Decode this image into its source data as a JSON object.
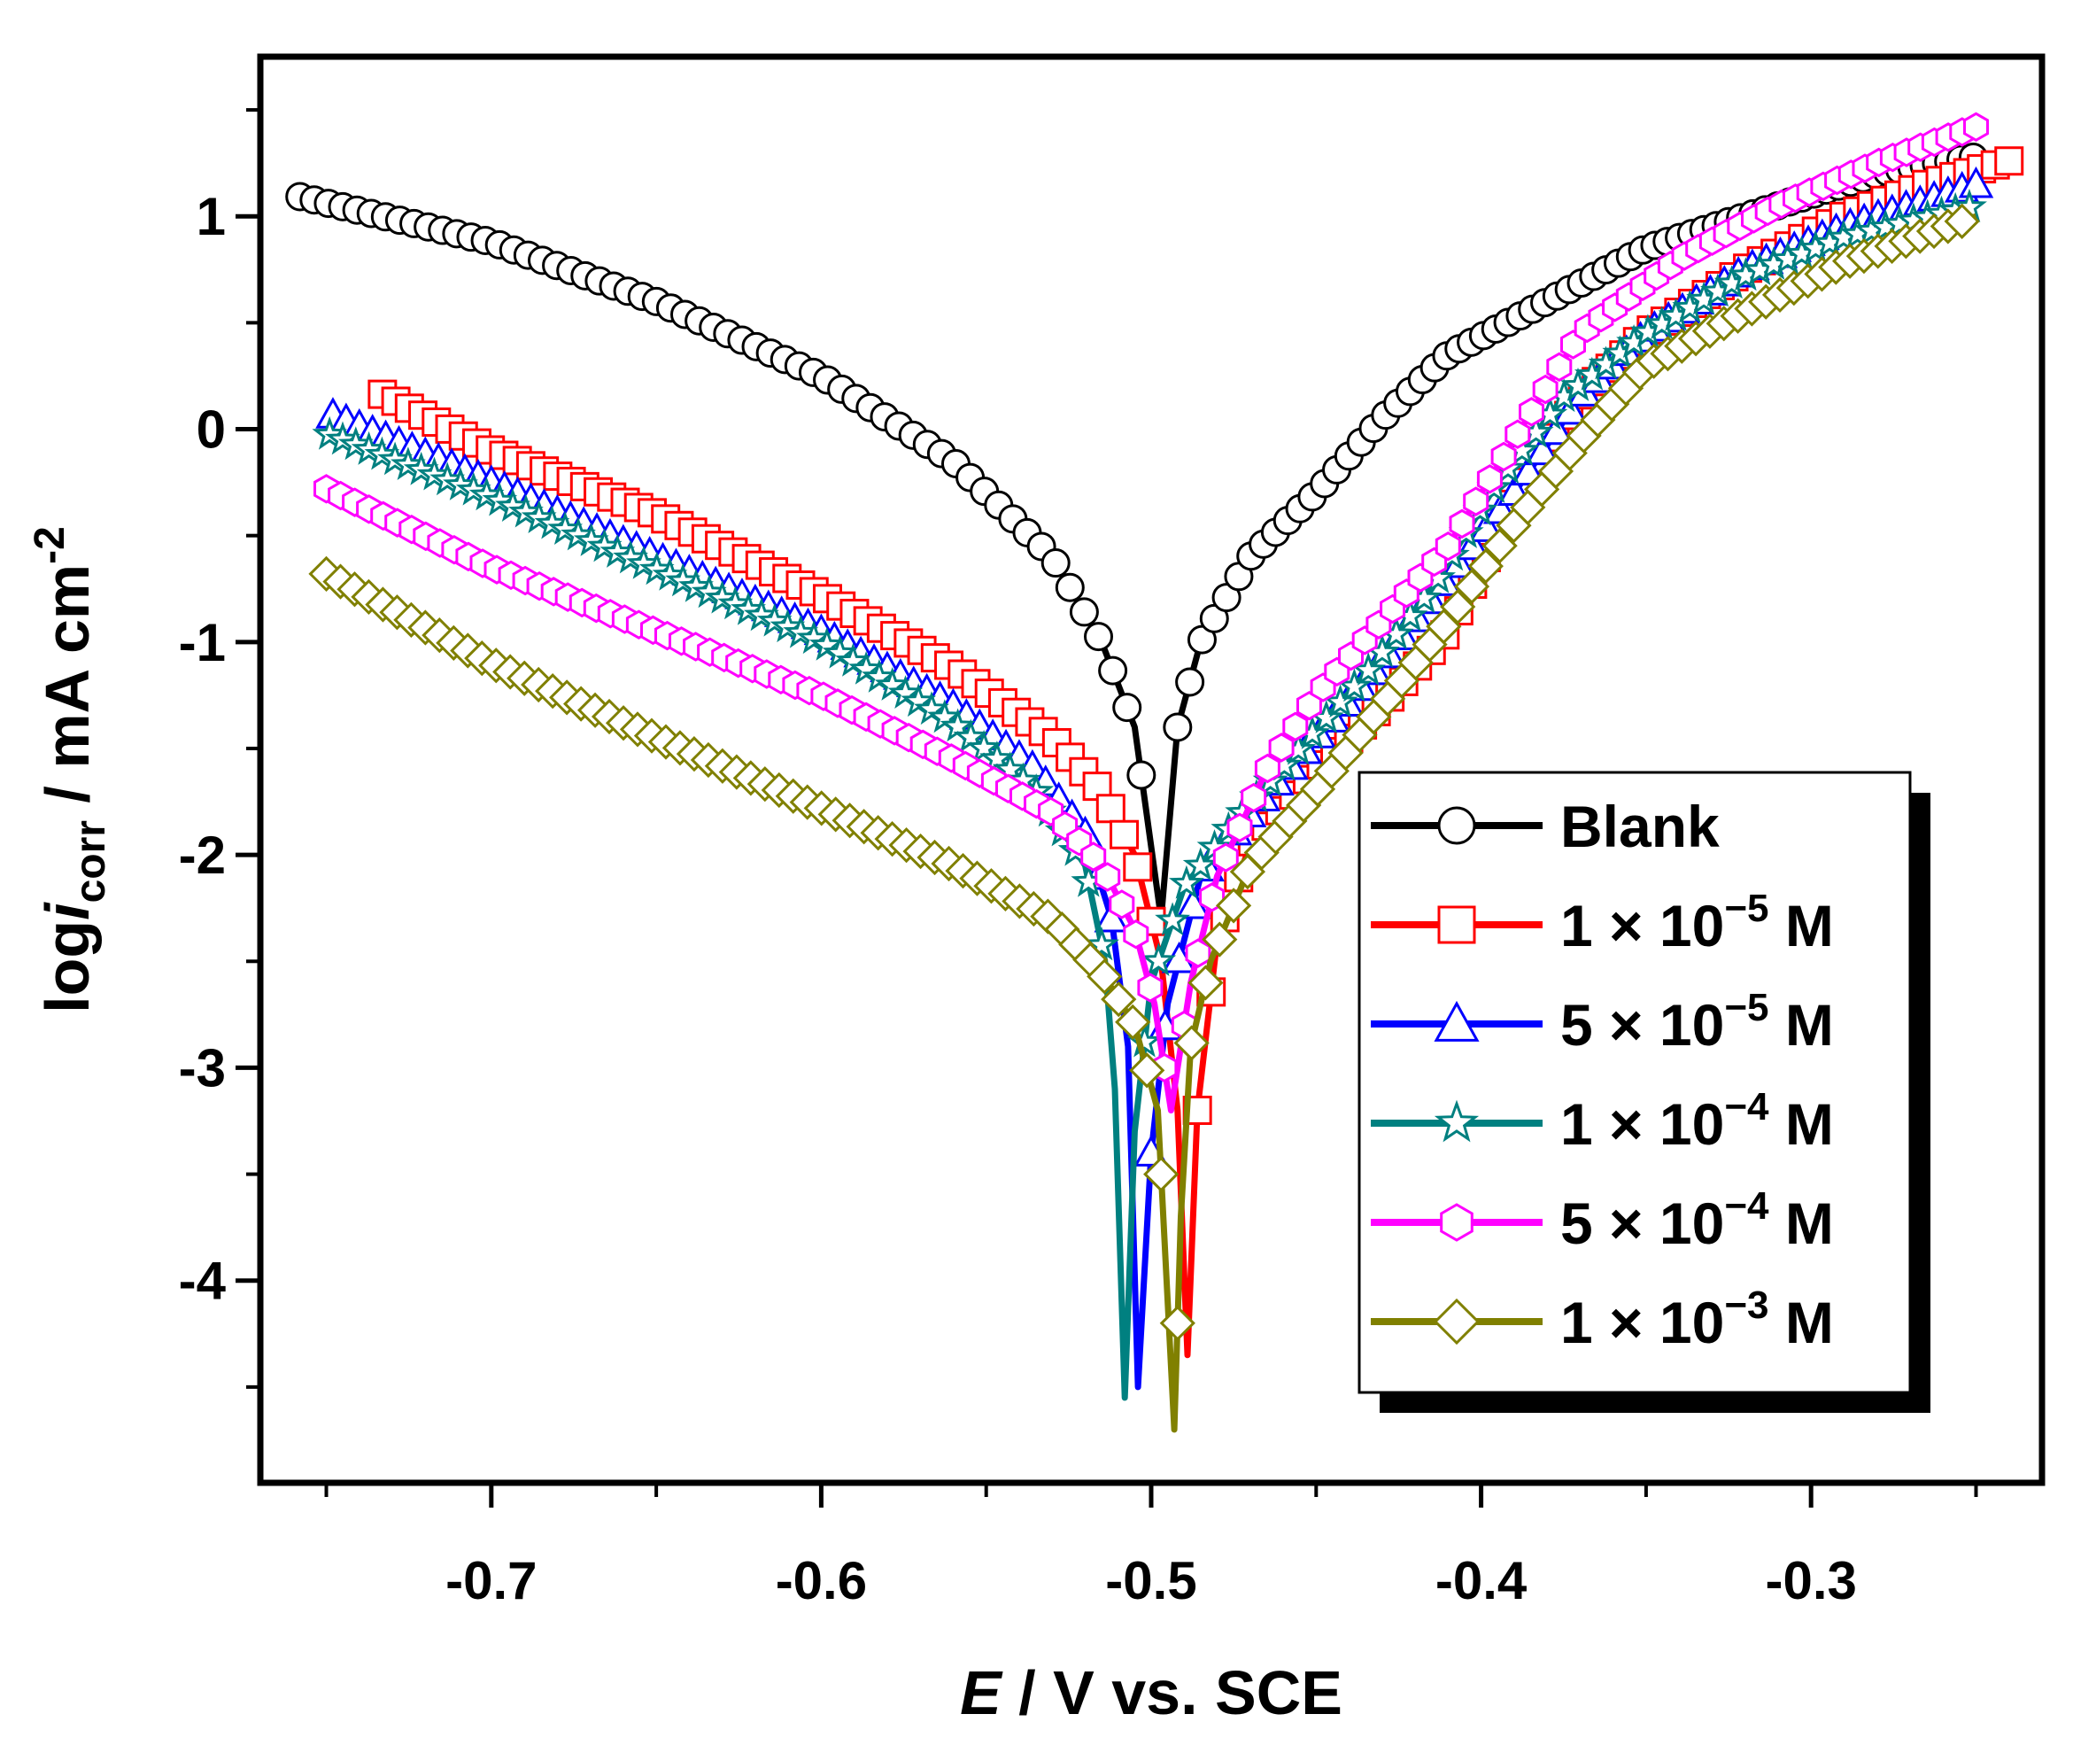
{
  "chart_data": {
    "type": "scatter",
    "title": "",
    "xlabel": {
      "italic": "E",
      "rest": " / V vs. SCE"
    },
    "ylabel": {
      "prefix": "log",
      "italic": "i",
      "subscript": "corr",
      "mid": " / mA cm",
      "superscript": "-2"
    },
    "xlim": [
      -0.77,
      -0.23
    ],
    "ylim": [
      -4.95,
      1.75
    ],
    "x_ticks": [
      -0.7,
      -0.6,
      -0.5,
      -0.4,
      -0.3
    ],
    "x_tick_labels": [
      "-0.7",
      "-0.6",
      "-0.5",
      "-0.4",
      "-0.3"
    ],
    "y_ticks": [
      -4,
      -3,
      -2,
      -1,
      0,
      1
    ],
    "y_tick_labels": [
      "-4",
      "-3",
      "-2",
      "-1",
      "0",
      "1"
    ],
    "grid": false,
    "legend_position": "lower-right",
    "series": [
      {
        "name": "Blank",
        "legend_main": "Blank",
        "legend_exp": "",
        "legend_unit": "",
        "color": "#000000",
        "marker": "circle",
        "ecorr": -0.497,
        "icorr_min": -2.3,
        "anodic": [
          [
            -0.497,
            -2.3
          ],
          [
            -0.492,
            -1.4
          ],
          [
            -0.485,
            -1.0
          ],
          [
            -0.47,
            -0.6
          ],
          [
            -0.45,
            -0.3
          ],
          [
            -0.43,
            0.05
          ],
          [
            -0.41,
            0.35
          ],
          [
            -0.38,
            0.6
          ],
          [
            -0.35,
            0.85
          ],
          [
            -0.32,
            1.0
          ],
          [
            -0.3,
            1.1
          ],
          [
            -0.28,
            1.2
          ],
          [
            -0.25,
            1.28
          ]
        ],
        "cathodic": [
          [
            -0.76,
            1.1
          ],
          [
            -0.7,
            0.88
          ],
          [
            -0.65,
            0.6
          ],
          [
            -0.6,
            0.25
          ],
          [
            -0.56,
            -0.15
          ],
          [
            -0.53,
            -0.6
          ],
          [
            -0.515,
            -1.0
          ],
          [
            -0.505,
            -1.4
          ],
          [
            -0.497,
            -2.3
          ]
        ],
        "marker_anodic": [
          -0.492,
          -0.236,
          70
        ],
        "marker_cathodic": [
          -0.758,
          -0.503,
          60
        ]
      },
      {
        "name": "1 × 10^-5 M",
        "legend_main": "1 × 10",
        "legend_exp": "−5",
        "legend_unit": " M",
        "color": "#ff0000",
        "marker": "square",
        "ecorr": -0.489,
        "icorr_min": -4.35,
        "anodic": [
          [
            -0.489,
            -4.35
          ],
          [
            -0.486,
            -3.2
          ],
          [
            -0.48,
            -2.4
          ],
          [
            -0.47,
            -1.95
          ],
          [
            -0.45,
            -1.6
          ],
          [
            -0.43,
            -1.3
          ],
          [
            -0.41,
            -0.95
          ],
          [
            -0.39,
            -0.35
          ],
          [
            -0.37,
            0.15
          ],
          [
            -0.35,
            0.45
          ],
          [
            -0.32,
            0.75
          ],
          [
            -0.29,
            1.0
          ],
          [
            -0.265,
            1.15
          ],
          [
            -0.24,
            1.26
          ]
        ],
        "cathodic": [
          [
            -0.735,
            0.18
          ],
          [
            -0.7,
            -0.1
          ],
          [
            -0.65,
            -0.4
          ],
          [
            -0.6,
            -0.78
          ],
          [
            -0.56,
            -1.12
          ],
          [
            -0.53,
            -1.45
          ],
          [
            -0.515,
            -1.7
          ],
          [
            -0.505,
            -2.0
          ],
          [
            -0.497,
            -2.5
          ],
          [
            -0.492,
            -3.2
          ],
          [
            -0.489,
            -4.35
          ]
        ],
        "marker_anodic": [
          -0.486,
          -0.24,
          60
        ],
        "marker_cathodic": [
          -0.733,
          -0.5,
          58
        ]
      },
      {
        "name": "5 × 10^-5 M",
        "legend_main": "5 × 10",
        "legend_exp": "−5",
        "legend_unit": " M",
        "color": "#0000ff",
        "marker": "triangle",
        "ecorr": -0.504,
        "icorr_min": -4.5,
        "anodic": [
          [
            -0.504,
            -4.5
          ],
          [
            -0.5,
            -3.4
          ],
          [
            -0.495,
            -2.7
          ],
          [
            -0.485,
            -2.1
          ],
          [
            -0.47,
            -1.8
          ],
          [
            -0.45,
            -1.45
          ],
          [
            -0.43,
            -1.1
          ],
          [
            -0.41,
            -0.7
          ],
          [
            -0.39,
            -0.3
          ],
          [
            -0.37,
            0.15
          ],
          [
            -0.35,
            0.45
          ],
          [
            -0.32,
            0.75
          ],
          [
            -0.29,
            0.95
          ],
          [
            -0.25,
            1.15
          ]
        ],
        "cathodic": [
          [
            -0.75,
            0.08
          ],
          [
            -0.7,
            -0.25
          ],
          [
            -0.65,
            -0.6
          ],
          [
            -0.6,
            -0.95
          ],
          [
            -0.56,
            -1.3
          ],
          [
            -0.535,
            -1.6
          ],
          [
            -0.52,
            -1.9
          ],
          [
            -0.512,
            -2.3
          ],
          [
            -0.507,
            -2.9
          ],
          [
            -0.504,
            -4.5
          ]
        ],
        "marker_anodic": [
          -0.5,
          -0.25,
          60
        ],
        "marker_cathodic": [
          -0.748,
          -0.512,
          60
        ]
      },
      {
        "name": "1 × 10^-4 M",
        "legend_main": "1 × 10",
        "legend_exp": "−4",
        "legend_unit": " M",
        "color": "#008080",
        "marker": "star",
        "ecorr": -0.508,
        "icorr_min": -4.55,
        "anodic": [
          [
            -0.508,
            -4.55
          ],
          [
            -0.505,
            -3.3
          ],
          [
            -0.5,
            -2.6
          ],
          [
            -0.49,
            -2.15
          ],
          [
            -0.475,
            -1.85
          ],
          [
            -0.455,
            -1.5
          ],
          [
            -0.435,
            -1.15
          ],
          [
            -0.415,
            -0.75
          ],
          [
            -0.395,
            -0.25
          ],
          [
            -0.375,
            0.15
          ],
          [
            -0.35,
            0.45
          ],
          [
            -0.32,
            0.72
          ],
          [
            -0.29,
            0.9
          ],
          [
            -0.25,
            1.05
          ]
        ],
        "cathodic": [
          [
            -0.75,
            -0.02
          ],
          [
            -0.7,
            -0.32
          ],
          [
            -0.65,
            -0.66
          ],
          [
            -0.6,
            -1.0
          ],
          [
            -0.56,
            -1.38
          ],
          [
            -0.535,
            -1.7
          ],
          [
            -0.52,
            -2.05
          ],
          [
            -0.514,
            -2.5
          ],
          [
            -0.511,
            -3.1
          ],
          [
            -0.508,
            -4.55
          ]
        ],
        "marker_anodic": [
          -0.502,
          -0.252,
          60
        ],
        "marker_cathodic": [
          -0.749,
          -0.515,
          60
        ]
      },
      {
        "name": "5 × 10^-4 M",
        "legend_main": "5 × 10",
        "legend_exp": "−4",
        "legend_unit": " M",
        "color": "#ff00ff",
        "marker": "hexagon",
        "ecorr": -0.494,
        "icorr_min": -3.2,
        "anodic": [
          [
            -0.494,
            -3.2
          ],
          [
            -0.488,
            -2.6
          ],
          [
            -0.48,
            -2.1
          ],
          [
            -0.465,
            -1.6
          ],
          [
            -0.45,
            -1.25
          ],
          [
            -0.43,
            -0.9
          ],
          [
            -0.41,
            -0.55
          ],
          [
            -0.39,
            -0.05
          ],
          [
            -0.37,
            0.45
          ],
          [
            -0.34,
            0.8
          ],
          [
            -0.31,
            1.05
          ],
          [
            -0.28,
            1.25
          ],
          [
            -0.25,
            1.42
          ]
        ],
        "cathodic": [
          [
            -0.75,
            -0.28
          ],
          [
            -0.7,
            -0.65
          ],
          [
            -0.65,
            -0.95
          ],
          [
            -0.6,
            -1.25
          ],
          [
            -0.56,
            -1.55
          ],
          [
            -0.53,
            -1.8
          ],
          [
            -0.515,
            -2.05
          ],
          [
            -0.505,
            -2.35
          ],
          [
            -0.499,
            -2.7
          ],
          [
            -0.494,
            -3.2
          ]
        ],
        "marker_anodic": [
          -0.49,
          -0.25,
          58
        ],
        "marker_cathodic": [
          -0.75,
          -0.496,
          60
        ]
      },
      {
        "name": "1 × 10^-3 M",
        "legend_main": "1 × 10",
        "legend_exp": "−3",
        "legend_unit": " M",
        "color": "#808000",
        "marker": "diamond",
        "ecorr": -0.493,
        "icorr_min": -4.7,
        "anodic": [
          [
            -0.493,
            -4.7
          ],
          [
            -0.491,
            -3.7
          ],
          [
            -0.488,
            -2.9
          ],
          [
            -0.482,
            -2.5
          ],
          [
            -0.47,
            -2.05
          ],
          [
            -0.45,
            -1.7
          ],
          [
            -0.43,
            -1.3
          ],
          [
            -0.41,
            -0.9
          ],
          [
            -0.39,
            -0.45
          ],
          [
            -0.37,
            -0.05
          ],
          [
            -0.35,
            0.3
          ],
          [
            -0.32,
            0.55
          ],
          [
            -0.29,
            0.78
          ],
          [
            -0.25,
            1.0
          ]
        ],
        "cathodic": [
          [
            -0.75,
            -0.68
          ],
          [
            -0.7,
            -1.1
          ],
          [
            -0.65,
            -1.45
          ],
          [
            -0.6,
            -1.78
          ],
          [
            -0.56,
            -2.05
          ],
          [
            -0.53,
            -2.3
          ],
          [
            -0.515,
            -2.55
          ],
          [
            -0.505,
            -2.8
          ],
          [
            -0.498,
            -3.2
          ],
          [
            -0.493,
            -4.7
          ]
        ],
        "marker_anodic": [
          -0.492,
          -0.25,
          58
        ],
        "marker_cathodic": [
          -0.75,
          -0.497,
          60
        ]
      }
    ]
  }
}
